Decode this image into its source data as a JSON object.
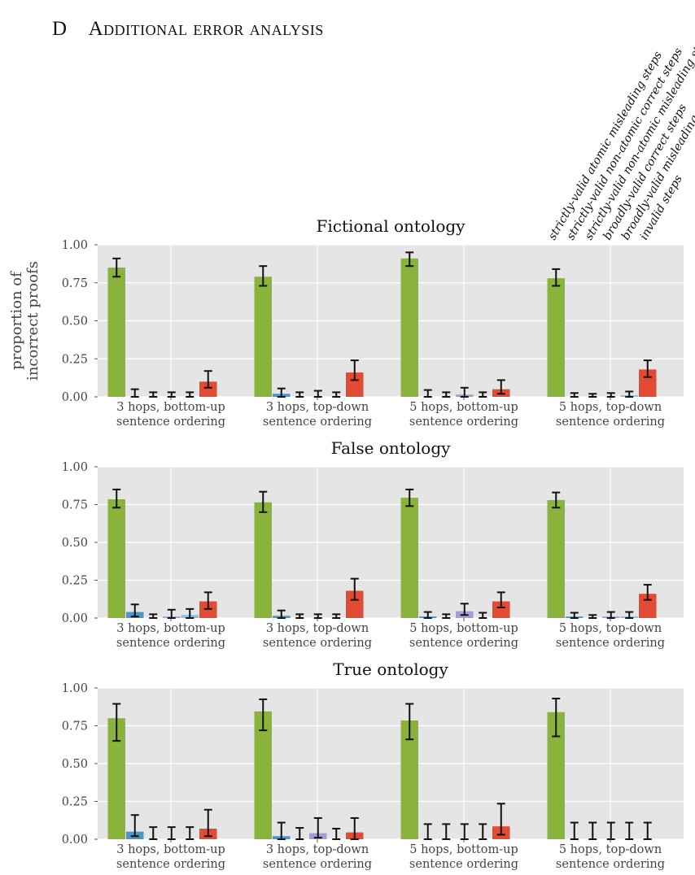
{
  "section_heading": {
    "number": "D",
    "title": "Additional error analysis"
  },
  "legend": [
    "strictly-valid atomic misleading steps",
    "strictly-valid non-atomic correct steps",
    "strictly-valid non-atomic misleading steps",
    "broadly-valid correct steps",
    "broadly-valid misleading steps",
    "invalid steps"
  ],
  "colors": {
    "series": [
      "#8ab33c",
      "#4d96c9",
      "#9b8ed0",
      "#a99bd8",
      "#8cc0e3",
      "#e24a33"
    ],
    "panel_background": "#e5e5e5",
    "grid": "#ffffff"
  },
  "chart_data": [
    {
      "type": "bar",
      "title": "Fictional ontology",
      "ylabel": "proportion of incorrect proofs",
      "ylim": [
        0,
        1
      ],
      "yticks": [
        "0.00",
        "0.25",
        "0.50",
        "0.75",
        "1.00"
      ],
      "grid": true,
      "categories": [
        [
          "3 hops, bottom-up",
          "sentence ordering"
        ],
        [
          "3 hops, top-down",
          "sentence ordering"
        ],
        [
          "5 hops, bottom-up",
          "sentence ordering"
        ],
        [
          "5 hops, top-down",
          "sentence ordering"
        ]
      ],
      "series": [
        {
          "name": "strictly-valid atomic misleading steps",
          "values": [
            0.85,
            0.79,
            0.91,
            0.78
          ],
          "err_low": [
            0.79,
            0.73,
            0.86,
            0.73
          ],
          "err_high": [
            0.91,
            0.86,
            0.95,
            0.84
          ]
        },
        {
          "name": "strictly-valid non-atomic correct steps",
          "values": [
            0.0,
            0.02,
            0.0,
            0.0
          ],
          "err_low": [
            0.0,
            0.0,
            0.0,
            0.0
          ],
          "err_high": [
            0.05,
            0.055,
            0.045,
            0.025
          ]
        },
        {
          "name": "strictly-valid non-atomic misleading steps",
          "values": [
            0.0,
            0.0,
            0.0,
            0.0
          ],
          "err_low": [
            0.0,
            0.0,
            0.0,
            0.0
          ],
          "err_high": [
            0.03,
            0.03,
            0.03,
            0.02
          ]
        },
        {
          "name": "broadly-valid correct steps",
          "values": [
            0.0,
            0.0,
            0.015,
            0.0
          ],
          "err_low": [
            0.0,
            0.0,
            0.0,
            0.0
          ],
          "err_high": [
            0.03,
            0.04,
            0.06,
            0.025
          ]
        },
        {
          "name": "broadly-valid misleading steps",
          "values": [
            0.0,
            0.0,
            0.0,
            0.01
          ],
          "err_low": [
            0.0,
            0.0,
            0.0,
            0.0
          ],
          "err_high": [
            0.03,
            0.03,
            0.03,
            0.035
          ]
        },
        {
          "name": "invalid steps",
          "values": [
            0.1,
            0.16,
            0.05,
            0.18
          ],
          "err_low": [
            0.06,
            0.11,
            0.02,
            0.13
          ],
          "err_high": [
            0.17,
            0.24,
            0.11,
            0.24
          ]
        }
      ]
    },
    {
      "type": "bar",
      "title": "False ontology",
      "ylabel": "",
      "ylim": [
        0,
        1
      ],
      "yticks": [
        "0.00",
        "0.25",
        "0.50",
        "0.75",
        "1.00"
      ],
      "grid": true,
      "categories": [
        [
          "3 hops, bottom-up",
          "sentence ordering"
        ],
        [
          "3 hops, top-down",
          "sentence ordering"
        ],
        [
          "5 hops, bottom-up",
          "sentence ordering"
        ],
        [
          "5 hops, top-down",
          "sentence ordering"
        ]
      ],
      "series": [
        {
          "name": "strictly-valid atomic misleading steps",
          "values": [
            0.785,
            0.765,
            0.795,
            0.78
          ],
          "err_low": [
            0.73,
            0.7,
            0.74,
            0.73
          ],
          "err_high": [
            0.85,
            0.835,
            0.85,
            0.83
          ]
        },
        {
          "name": "strictly-valid non-atomic correct steps",
          "values": [
            0.04,
            0.015,
            0.01,
            0.01
          ],
          "err_low": [
            0.01,
            0.0,
            0.0,
            0.0
          ],
          "err_high": [
            0.09,
            0.05,
            0.04,
            0.035
          ]
        },
        {
          "name": "strictly-valid non-atomic misleading steps",
          "values": [
            0.0,
            0.0,
            0.0,
            0.0
          ],
          "err_low": [
            0.0,
            0.0,
            0.0,
            0.0
          ],
          "err_high": [
            0.025,
            0.025,
            0.025,
            0.02
          ]
        },
        {
          "name": "broadly-valid correct steps",
          "values": [
            0.01,
            0.0,
            0.045,
            0.01
          ],
          "err_low": [
            0.0,
            0.0,
            0.02,
            0.0
          ],
          "err_high": [
            0.055,
            0.025,
            0.095,
            0.04
          ]
        },
        {
          "name": "broadly-valid misleading steps",
          "values": [
            0.02,
            0.0,
            0.0,
            0.01
          ],
          "err_low": [
            0.0,
            0.0,
            0.0,
            0.0
          ],
          "err_high": [
            0.06,
            0.025,
            0.035,
            0.04
          ]
        },
        {
          "name": "invalid steps",
          "values": [
            0.11,
            0.18,
            0.11,
            0.16
          ],
          "err_low": [
            0.06,
            0.12,
            0.07,
            0.12
          ],
          "err_high": [
            0.17,
            0.26,
            0.17,
            0.22
          ]
        }
      ]
    },
    {
      "type": "bar",
      "title": "True ontology",
      "ylabel": "",
      "ylim": [
        0,
        1
      ],
      "yticks": [
        "0.00",
        "0.25",
        "0.50",
        "0.75",
        "1.00"
      ],
      "grid": true,
      "categories": [
        [
          "3 hops, bottom-up",
          "sentence ordering"
        ],
        [
          "3 hops, top-down",
          "sentence ordering"
        ],
        [
          "5 hops, bottom-up",
          "sentence ordering"
        ],
        [
          "5 hops, top-down",
          "sentence ordering"
        ]
      ],
      "series": [
        {
          "name": "strictly-valid atomic misleading steps",
          "values": [
            0.8,
            0.845,
            0.785,
            0.84
          ],
          "err_low": [
            0.65,
            0.72,
            0.66,
            0.68
          ],
          "err_high": [
            0.895,
            0.925,
            0.895,
            0.93
          ]
        },
        {
          "name": "strictly-valid non-atomic correct steps",
          "values": [
            0.05,
            0.02,
            0.0,
            0.0
          ],
          "err_low": [
            0.02,
            0.0,
            0.0,
            0.0
          ],
          "err_high": [
            0.16,
            0.11,
            0.1,
            0.11
          ]
        },
        {
          "name": "strictly-valid non-atomic misleading steps",
          "values": [
            0.0,
            0.0,
            0.0,
            0.0
          ],
          "err_low": [
            0.0,
            0.0,
            0.0,
            0.0
          ],
          "err_high": [
            0.08,
            0.075,
            0.1,
            0.11
          ]
        },
        {
          "name": "broadly-valid correct steps",
          "values": [
            0.0,
            0.04,
            0.0,
            0.0
          ],
          "err_low": [
            0.0,
            0.01,
            0.0,
            0.0
          ],
          "err_high": [
            0.08,
            0.14,
            0.1,
            0.11
          ]
        },
        {
          "name": "broadly-valid misleading steps",
          "values": [
            0.0,
            0.0,
            0.0,
            0.0
          ],
          "err_low": [
            0.0,
            0.0,
            0.0,
            0.0
          ],
          "err_high": [
            0.08,
            0.07,
            0.1,
            0.11
          ]
        },
        {
          "name": "invalid steps",
          "values": [
            0.07,
            0.045,
            0.085,
            0.0
          ],
          "err_low": [
            0.02,
            0.0,
            0.03,
            0.0
          ],
          "err_high": [
            0.195,
            0.14,
            0.235,
            0.11
          ]
        }
      ]
    }
  ]
}
